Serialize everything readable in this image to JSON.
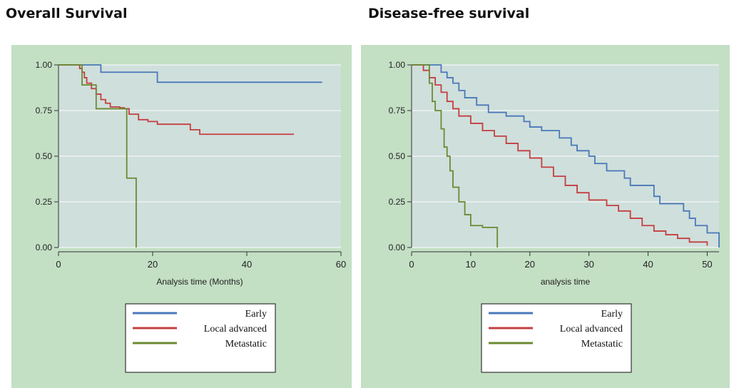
{
  "chart_data": [
    {
      "type": "line",
      "title": "Overall Survival",
      "xlabel": "Analysis time (Months)",
      "ylabel": "",
      "xlim": [
        0,
        60
      ],
      "ylim": [
        0,
        1
      ],
      "xticks": [
        "0",
        "20",
        "40",
        "60"
      ],
      "yticks": [
        "0.00",
        "0.25",
        "0.50",
        "0.75",
        "1.00"
      ],
      "grid": true,
      "legend_position": "bottom",
      "colors": {
        "plot_bg": "#cfdfdc",
        "outer_bg": "#c3dfc4"
      },
      "series": [
        {
          "name": "Early",
          "color": "#4a78b8",
          "x": [
            0,
            9,
            21,
            56
          ],
          "y": [
            1.0,
            0.96,
            0.905,
            0.905
          ]
        },
        {
          "name": "Local advanced",
          "color": "#c43f40",
          "x": [
            0,
            4.5,
            5,
            5.5,
            6,
            7,
            8,
            9,
            10,
            11,
            13,
            14,
            15,
            17,
            19,
            21,
            28,
            30,
            50
          ],
          "y": [
            1.0,
            0.98,
            0.96,
            0.93,
            0.9,
            0.87,
            0.84,
            0.81,
            0.79,
            0.77,
            0.765,
            0.76,
            0.73,
            0.7,
            0.69,
            0.675,
            0.645,
            0.62,
            0.62
          ]
        },
        {
          "name": "Metastatic",
          "color": "#6b8a32",
          "x": [
            0,
            5,
            8,
            14,
            14.5,
            16,
            16.5,
            16.5
          ],
          "y": [
            1.0,
            0.89,
            0.76,
            0.76,
            0.38,
            0.38,
            0.38,
            0.0
          ]
        }
      ]
    },
    {
      "type": "line",
      "title": "Disease-free survival",
      "xlabel": "analysis time",
      "ylabel": "",
      "xlim": [
        0,
        52
      ],
      "ylim": [
        0,
        1
      ],
      "xticks": [
        "0",
        "10",
        "20",
        "30",
        "40",
        "50"
      ],
      "yticks": [
        "0.00",
        "0.25",
        "0.50",
        "0.75",
        "1.00"
      ],
      "grid": true,
      "legend_position": "bottom",
      "colors": {
        "plot_bg": "#cfdfdc",
        "outer_bg": "#c3dfc4"
      },
      "series": [
        {
          "name": "Early",
          "color": "#4a78b8",
          "x": [
            0,
            5,
            6,
            7,
            8,
            9,
            11,
            13,
            16,
            19,
            20,
            22,
            25,
            27,
            28,
            30,
            31,
            33,
            36,
            37,
            41,
            42,
            46,
            47,
            48,
            50,
            52,
            52
          ],
          "y": [
            1.0,
            0.96,
            0.93,
            0.9,
            0.86,
            0.82,
            0.78,
            0.74,
            0.72,
            0.69,
            0.66,
            0.64,
            0.6,
            0.56,
            0.53,
            0.5,
            0.46,
            0.42,
            0.38,
            0.34,
            0.28,
            0.24,
            0.2,
            0.16,
            0.12,
            0.08,
            0.04,
            0.0
          ]
        },
        {
          "name": "Local advanced",
          "color": "#c43f40",
          "x": [
            0,
            2,
            3,
            4,
            5,
            6,
            7,
            8,
            10,
            12,
            14,
            16,
            18,
            20,
            22,
            24,
            26,
            28,
            30,
            33,
            35,
            37,
            39,
            41,
            43,
            45,
            47,
            50
          ],
          "y": [
            1.0,
            0.97,
            0.93,
            0.89,
            0.85,
            0.8,
            0.76,
            0.72,
            0.68,
            0.64,
            0.61,
            0.57,
            0.53,
            0.49,
            0.44,
            0.39,
            0.34,
            0.3,
            0.26,
            0.23,
            0.2,
            0.16,
            0.12,
            0.09,
            0.07,
            0.05,
            0.03,
            0.01
          ]
        },
        {
          "name": "Metastatic",
          "color": "#6b8a32",
          "x": [
            0,
            3,
            3.5,
            4,
            5,
            5.5,
            6,
            6.5,
            7,
            8,
            9,
            10,
            12,
            14.5,
            14.5
          ],
          "y": [
            1.0,
            0.9,
            0.8,
            0.75,
            0.65,
            0.55,
            0.5,
            0.42,
            0.33,
            0.25,
            0.18,
            0.12,
            0.11,
            0.11,
            0.0
          ]
        }
      ]
    }
  ]
}
